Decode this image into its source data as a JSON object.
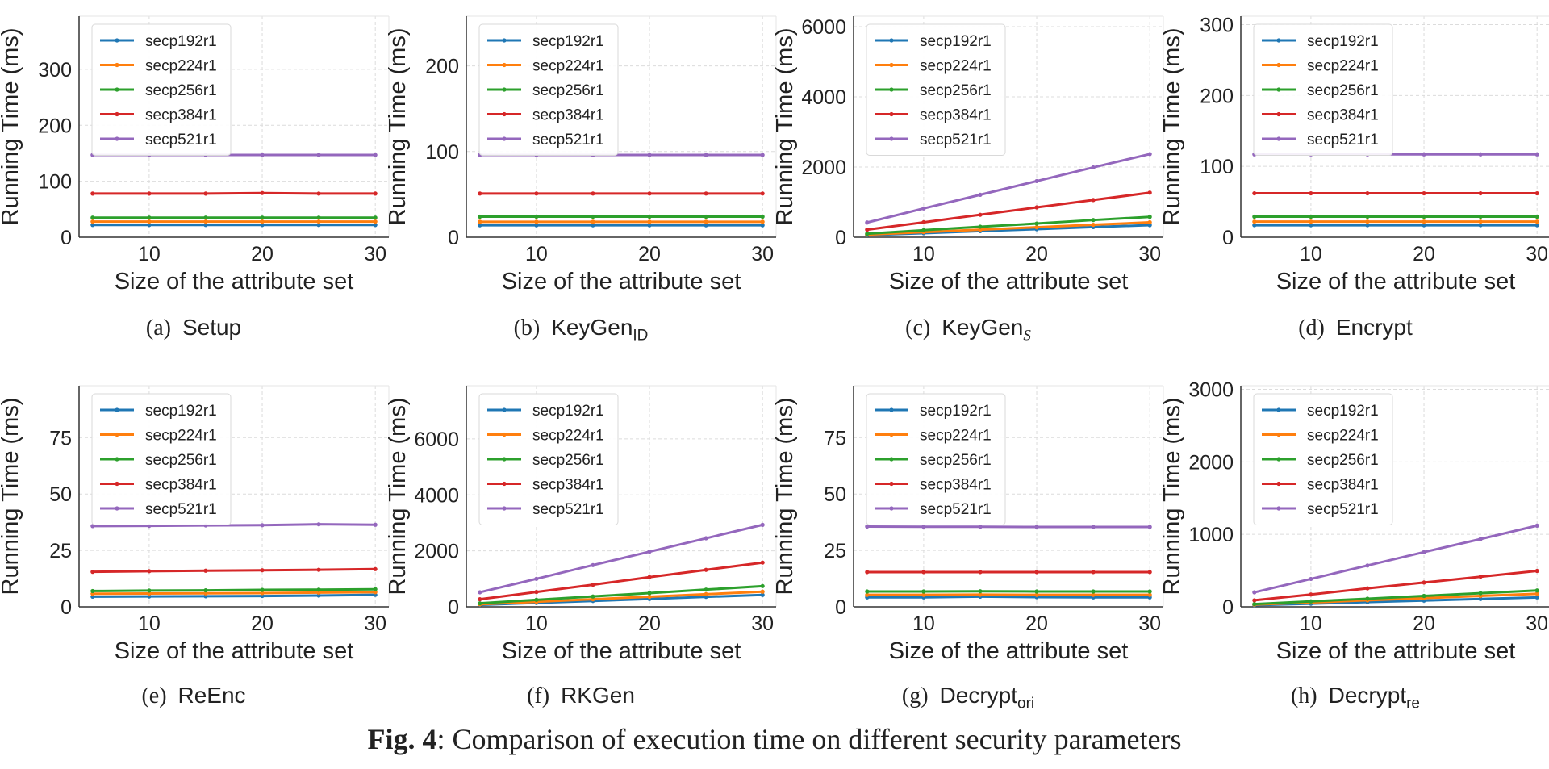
{
  "figure": {
    "caption_label": "Fig. 4",
    "caption_text": ": Comparison of execution time on different security parameters"
  },
  "colors": {
    "secp192r1": "#1f77b4",
    "secp224r1": "#ff7f0e",
    "secp256r1": "#2ca02c",
    "secp384r1": "#d62728",
    "secp521r1": "#9467bd"
  },
  "chart_data": [
    {
      "type": "line",
      "panel_label": "(a)",
      "panel_name": "Setup",
      "panel_sub": "",
      "xlabel": "Size of the attribute set",
      "ylabel": "Running Time (ms)",
      "x": [
        5,
        10,
        15,
        20,
        25,
        30
      ],
      "xlim": [
        3.8,
        31.2
      ],
      "xticks": [
        10,
        20,
        30
      ],
      "ylim": [
        0,
        395
      ],
      "yticks": [
        0,
        100,
        200,
        300
      ],
      "grid": true,
      "legend": "top-left",
      "series": [
        {
          "name": "secp192r1",
          "values": [
            22,
            22,
            22,
            22,
            22,
            22
          ]
        },
        {
          "name": "secp224r1",
          "values": [
            28,
            28,
            28,
            28,
            28,
            28
          ]
        },
        {
          "name": "secp256r1",
          "values": [
            35,
            35,
            35,
            35,
            35,
            35
          ]
        },
        {
          "name": "secp384r1",
          "values": [
            78,
            78,
            78,
            79,
            78,
            78
          ]
        },
        {
          "name": "secp521r1",
          "values": [
            147,
            147,
            147,
            147,
            147,
            147
          ]
        }
      ]
    },
    {
      "type": "line",
      "panel_label": "(b)",
      "panel_name": "KeyGen",
      "panel_sub": "ID",
      "xlabel": "Size of the attribute set",
      "ylabel": "Running Time (ms)",
      "x": [
        5,
        10,
        15,
        20,
        25,
        30
      ],
      "xlim": [
        3.8,
        31.2
      ],
      "xticks": [
        10,
        20,
        30
      ],
      "ylim": [
        0,
        258
      ],
      "yticks": [
        0,
        100,
        200
      ],
      "grid": true,
      "legend": "top-left",
      "series": [
        {
          "name": "secp192r1",
          "values": [
            14,
            14,
            14,
            14,
            14,
            14
          ]
        },
        {
          "name": "secp224r1",
          "values": [
            18,
            18,
            18,
            18,
            18,
            18
          ]
        },
        {
          "name": "secp256r1",
          "values": [
            24,
            24,
            24,
            24,
            24,
            24
          ]
        },
        {
          "name": "secp384r1",
          "values": [
            51,
            51,
            51,
            51,
            51,
            51
          ]
        },
        {
          "name": "secp521r1",
          "values": [
            96,
            96,
            96,
            96,
            96,
            96
          ]
        }
      ]
    },
    {
      "type": "line",
      "panel_label": "(c)",
      "panel_name": "KeyGen",
      "panel_sub": "S",
      "xlabel": "Size of the attribute set",
      "ylabel": "Running Time (ms)",
      "x": [
        5,
        10,
        15,
        20,
        25,
        30
      ],
      "xlim": [
        3.8,
        31.2
      ],
      "xticks": [
        10,
        20,
        30
      ],
      "ylim": [
        0,
        6300
      ],
      "yticks": [
        0,
        2000,
        4000,
        6000
      ],
      "grid": true,
      "legend": "top-left",
      "series": [
        {
          "name": "secp192r1",
          "values": [
            60,
            115,
            175,
            230,
            290,
            345
          ]
        },
        {
          "name": "secp224r1",
          "values": [
            75,
            145,
            215,
            285,
            355,
            425
          ]
        },
        {
          "name": "secp256r1",
          "values": [
            100,
            200,
            300,
            390,
            490,
            580
          ]
        },
        {
          "name": "secp384r1",
          "values": [
            215,
            425,
            640,
            850,
            1060,
            1270
          ]
        },
        {
          "name": "secp521r1",
          "values": [
            420,
            820,
            1210,
            1600,
            1990,
            2370
          ]
        }
      ]
    },
    {
      "type": "line",
      "panel_label": "(d)",
      "panel_name": "Encrypt",
      "panel_sub": "",
      "xlabel": "Size of the attribute set",
      "ylabel": "Running Time (ms)",
      "x": [
        5,
        10,
        15,
        20,
        25,
        30
      ],
      "xlim": [
        3.8,
        31.2
      ],
      "xticks": [
        10,
        20,
        30
      ],
      "ylim": [
        0,
        312
      ],
      "yticks": [
        0,
        100,
        200,
        300
      ],
      "grid": true,
      "legend": "top-left",
      "series": [
        {
          "name": "secp192r1",
          "values": [
            17,
            17,
            17,
            17,
            17,
            17
          ]
        },
        {
          "name": "secp224r1",
          "values": [
            22,
            22,
            22,
            22,
            22,
            22
          ]
        },
        {
          "name": "secp256r1",
          "values": [
            29,
            29,
            29,
            29,
            29,
            29
          ]
        },
        {
          "name": "secp384r1",
          "values": [
            62,
            62,
            62,
            62,
            62,
            62
          ]
        },
        {
          "name": "secp521r1",
          "values": [
            117,
            117,
            117,
            117,
            117,
            117
          ]
        }
      ]
    },
    {
      "type": "line",
      "panel_label": "(e)",
      "panel_name": "ReEnc",
      "panel_sub": "",
      "xlabel": "Size of the attribute set",
      "ylabel": "Running Time (ms)",
      "x": [
        5,
        10,
        15,
        20,
        25,
        30
      ],
      "xlim": [
        3.8,
        31.2
      ],
      "xticks": [
        10,
        20,
        30
      ],
      "ylim": [
        0,
        98
      ],
      "yticks": [
        0,
        25,
        50,
        75
      ],
      "grid": true,
      "legend": "top-left",
      "series": [
        {
          "name": "secp192r1",
          "values": [
            4.5,
            4.6,
            4.7,
            4.8,
            5.0,
            5.3
          ]
        },
        {
          "name": "secp224r1",
          "values": [
            5.8,
            5.9,
            6.0,
            6.1,
            6.3,
            6.5
          ]
        },
        {
          "name": "secp256r1",
          "values": [
            7.0,
            7.2,
            7.3,
            7.5,
            7.6,
            7.8
          ]
        },
        {
          "name": "secp384r1",
          "values": [
            15.5,
            15.8,
            16.0,
            16.2,
            16.4,
            16.7
          ]
        },
        {
          "name": "secp521r1",
          "values": [
            35.8,
            35.9,
            36.1,
            36.2,
            36.6,
            36.4
          ]
        }
      ]
    },
    {
      "type": "line",
      "panel_label": "(f)",
      "panel_name": "RKGen",
      "panel_sub": "",
      "xlabel": "Size of the attribute set",
      "ylabel": "Running Time (ms)",
      "x": [
        5,
        10,
        15,
        20,
        25,
        30
      ],
      "xlim": [
        3.8,
        31.2
      ],
      "xticks": [
        10,
        20,
        30
      ],
      "ylim": [
        0,
        7900
      ],
      "yticks": [
        0,
        2000,
        4000,
        6000
      ],
      "grid": true,
      "legend": "top-left",
      "series": [
        {
          "name": "secp192r1",
          "values": [
            70,
            140,
            210,
            280,
            355,
            425
          ]
        },
        {
          "name": "secp224r1",
          "values": [
            90,
            180,
            270,
            360,
            450,
            540
          ]
        },
        {
          "name": "secp256r1",
          "values": [
            125,
            250,
            370,
            490,
            615,
            740
          ]
        },
        {
          "name": "secp384r1",
          "values": [
            270,
            530,
            790,
            1060,
            1320,
            1580
          ]
        },
        {
          "name": "secp521r1",
          "values": [
            520,
            1000,
            1490,
            1970,
            2450,
            2930
          ]
        }
      ]
    },
    {
      "type": "line",
      "panel_label": "(g)",
      "panel_name": "Decrypt",
      "panel_sub": "ori",
      "xlabel": "Size of the attribute set",
      "ylabel": "Running Time (ms)",
      "x": [
        5,
        10,
        15,
        20,
        25,
        30
      ],
      "xlim": [
        3.8,
        31.2
      ],
      "xticks": [
        10,
        20,
        30
      ],
      "ylim": [
        0,
        98
      ],
      "yticks": [
        0,
        25,
        50,
        75
      ],
      "grid": true,
      "legend": "top-left",
      "series": [
        {
          "name": "secp192r1",
          "values": [
            4.2,
            4.2,
            4.5,
            4.3,
            4.2,
            4.2
          ]
        },
        {
          "name": "secp224r1",
          "values": [
            5.3,
            5.3,
            5.4,
            5.3,
            5.3,
            5.3
          ]
        },
        {
          "name": "secp256r1",
          "values": [
            6.8,
            6.8,
            6.9,
            6.8,
            6.8,
            6.8
          ]
        },
        {
          "name": "secp384r1",
          "values": [
            15.4,
            15.4,
            15.4,
            15.4,
            15.4,
            15.4
          ]
        },
        {
          "name": "secp521r1",
          "values": [
            35.6,
            35.5,
            35.5,
            35.4,
            35.4,
            35.4
          ]
        }
      ]
    },
    {
      "type": "line",
      "panel_label": "(h)",
      "panel_name": "Decrypt",
      "panel_sub": "re",
      "xlabel": "Size of the attribute set",
      "ylabel": "Running Time (ms)",
      "x": [
        5,
        10,
        15,
        20,
        25,
        30
      ],
      "xlim": [
        3.8,
        31.2
      ],
      "xticks": [
        10,
        20,
        30
      ],
      "ylim": [
        0,
        3050
      ],
      "yticks": [
        0,
        1000,
        2000,
        3000
      ],
      "grid": true,
      "legend": "top-left",
      "series": [
        {
          "name": "secp192r1",
          "values": [
            22,
            43,
            65,
            86,
            108,
            130
          ]
        },
        {
          "name": "secp224r1",
          "values": [
            30,
            60,
            90,
            120,
            150,
            180
          ]
        },
        {
          "name": "secp256r1",
          "values": [
            38,
            75,
            112,
            150,
            188,
            225
          ]
        },
        {
          "name": "secp384r1",
          "values": [
            90,
            170,
            255,
            335,
            415,
            495
          ]
        },
        {
          "name": "secp521r1",
          "values": [
            200,
            385,
            570,
            755,
            935,
            1120
          ]
        }
      ]
    }
  ]
}
